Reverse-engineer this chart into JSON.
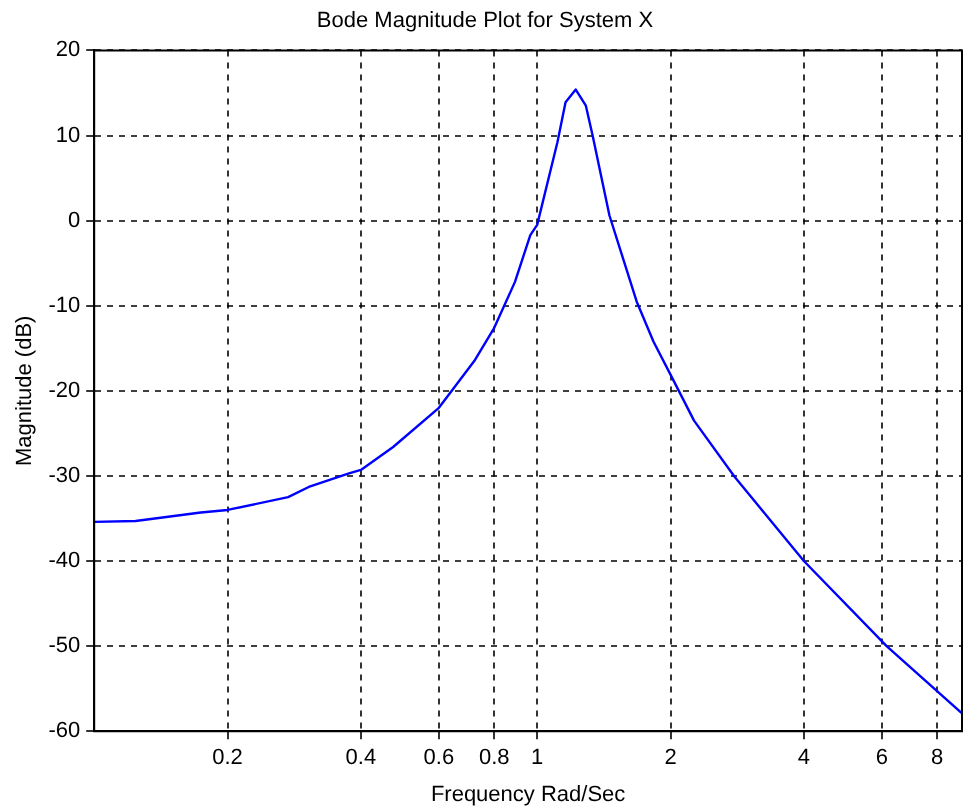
{
  "chart_data": {
    "type": "line",
    "title": "Bode Magnitude Plot for System X",
    "xlabel": "Frequency Rad/Sec",
    "ylabel": "Magnitude (dB)",
    "log": "x",
    "grid": true,
    "legend": false,
    "marker": "none",
    "line_style": "solid",
    "xlim": [
      0.1,
      9.1
    ],
    "xticks": [
      0.2,
      0.4,
      0.6,
      0.8,
      1,
      2,
      4,
      6,
      8
    ],
    "ylim": [
      -60,
      20
    ],
    "yticks": [
      -60,
      -50,
      -40,
      -30,
      -20,
      -10,
      0,
      10,
      20
    ],
    "series": [
      {
        "color": "#0000ff",
        "x": [
          0.1,
          0.124,
          0.174,
          0.2,
          0.274,
          0.305,
          0.376,
          0.4,
          0.473,
          0.6,
          0.721,
          0.8,
          0.891,
          0.965,
          1.0,
          1.111,
          1.159,
          1.222,
          1.288,
          1.334,
          1.456,
          1.677,
          1.83,
          2.0,
          2.26,
          2.79,
          4.0,
          6.15,
          9.1
        ],
        "values": [
          -35.4,
          -35.3,
          -34.3,
          -34.0,
          -32.5,
          -31.3,
          -29.7,
          -29.3,
          -26.6,
          -22.0,
          -16.5,
          -12.6,
          -7.2,
          -1.7,
          -0.5,
          9.2,
          13.9,
          15.4,
          13.5,
          10.0,
          0.6,
          -9.5,
          -14.2,
          -18.1,
          -23.5,
          -30.1,
          -40.0,
          -50.0,
          -57.9
        ]
      }
    ]
  }
}
